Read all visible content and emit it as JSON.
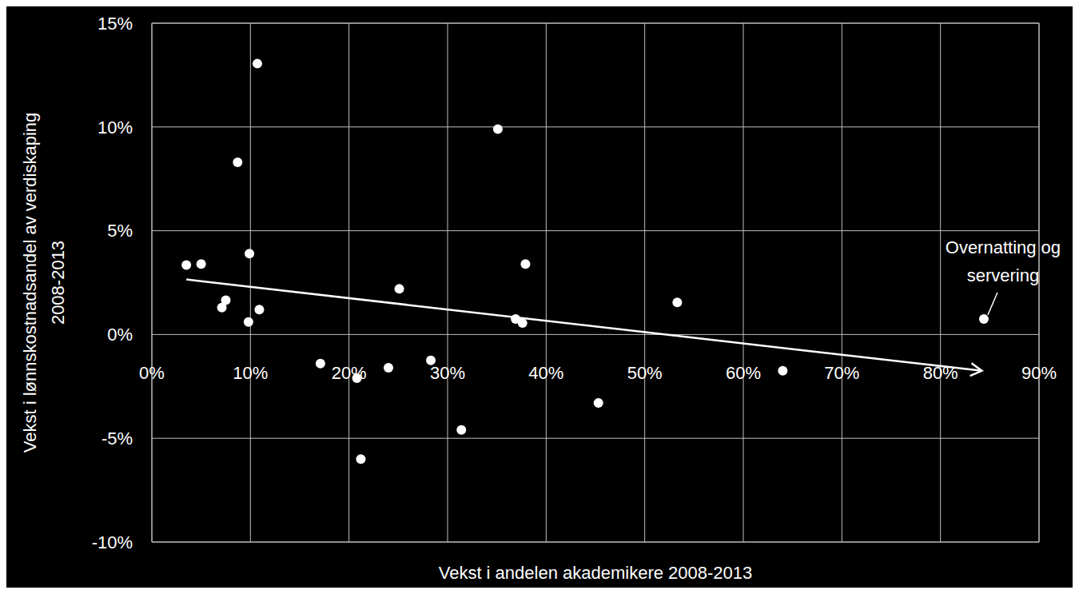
{
  "chart_data": {
    "type": "scatter",
    "x_label": "Vekst i andelen akademikere 2008-2013",
    "y_label": "Vekst i lønnskostnadsandel  av verdiskaping 2008-2013",
    "x": [
      3.5,
      5.0,
      7.1,
      7.5,
      8.7,
      9.9,
      9.8,
      10.7,
      10.9,
      17.1,
      20.8,
      21.2,
      24.0,
      25.1,
      28.3,
      31.4,
      35.1,
      36.9,
      37.6,
      37.9,
      45.3,
      53.3,
      64.0,
      84.4
    ],
    "y": [
      3.35,
      3.4,
      1.3,
      1.65,
      8.3,
      3.9,
      0.6,
      13.05,
      1.2,
      -1.4,
      -2.1,
      -6.0,
      -1.6,
      2.2,
      -1.25,
      -4.6,
      9.9,
      0.75,
      0.55,
      3.4,
      -3.3,
      1.55,
      -1.75,
      0.75
    ],
    "color": "#ffffff",
    "marker": "circle",
    "trend": {
      "x": [
        3.5,
        84.2
      ],
      "y": [
        2.65,
        -1.75
      ],
      "color": "#ffffff"
    },
    "annotation": {
      "text": "Overnatting og servering",
      "x": 84.4,
      "y": 0.75
    },
    "xlim": [
      0,
      90
    ],
    "xticks": [
      {
        "value": 0,
        "label": "0%"
      },
      {
        "value": 10,
        "label": "10%"
      },
      {
        "value": 20,
        "label": "20%"
      },
      {
        "value": 30,
        "label": "30%"
      },
      {
        "value": 40,
        "label": "40%"
      },
      {
        "value": 50,
        "label": "50%"
      },
      {
        "value": 60,
        "label": "60%"
      },
      {
        "value": 70,
        "label": "70%"
      },
      {
        "value": 80,
        "label": "80%"
      },
      {
        "value": 90,
        "label": "90%"
      }
    ],
    "ylim": [
      -10,
      15
    ],
    "yticks": [
      {
        "value": -10,
        "label": "-10%"
      },
      {
        "value": -5,
        "label": "-5%"
      },
      {
        "value": 0,
        "label": "0%"
      },
      {
        "value": 5,
        "label": "5%"
      },
      {
        "value": 10,
        "label": "10%"
      },
      {
        "value": 15,
        "label": "15%"
      }
    ],
    "grid": true
  }
}
